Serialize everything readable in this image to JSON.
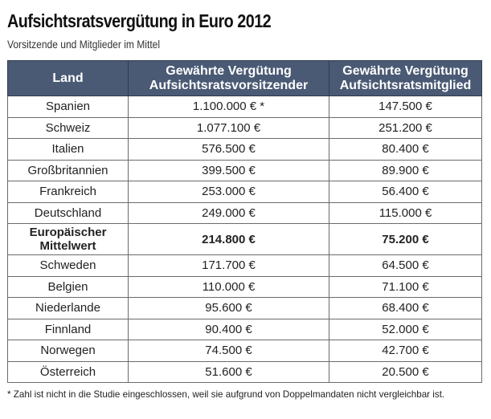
{
  "chart_data": {
    "type": "table",
    "title": "Aufsichtsratsvergütung in Euro 2012",
    "subtitle": "Vorsitzende und Mitglieder im Mittel",
    "columns": [
      "Land",
      "Gewährte Vergütung Aufsichtsratsvorsitzender",
      "Gewährte Vergütung Aufsichtsratsmitglied"
    ],
    "rows": [
      {
        "land": "Spanien",
        "vorsitzender": "1.100.000 € *",
        "mitglied": "147.500 €"
      },
      {
        "land": "Schweiz",
        "vorsitzender": "1.077.100 €",
        "mitglied": "251.200 €"
      },
      {
        "land": "Italien",
        "vorsitzender": "576.500 €",
        "mitglied": "80.400 €"
      },
      {
        "land": "Großbritannien",
        "vorsitzender": "399.500 €",
        "mitglied": "89.900 €"
      },
      {
        "land": "Frankreich",
        "vorsitzender": "253.000 €",
        "mitglied": "56.400 €"
      },
      {
        "land": "Deutschland",
        "vorsitzender": "249.000 €",
        "mitglied": "115.000 €"
      },
      {
        "land": "Europäischer Mittelwert",
        "vorsitzender": "214.800 €",
        "mitglied": "75.200 €",
        "bold": true
      },
      {
        "land": "Schweden",
        "vorsitzender": "171.700 €",
        "mitglied": "64.500 €"
      },
      {
        "land": "Belgien",
        "vorsitzender": "110.000 €",
        "mitglied": "71.100 €"
      },
      {
        "land": "Niederlande",
        "vorsitzender": "95.600 €",
        "mitglied": "68.400 €"
      },
      {
        "land": "Finnland",
        "vorsitzender": "90.400 €",
        "mitglied": "52.000 €"
      },
      {
        "land": "Norwegen",
        "vorsitzender": "74.500 €",
        "mitglied": "42.700 €"
      },
      {
        "land": "Österreich",
        "vorsitzender": "51.600 €",
        "mitglied": "20.500 €"
      }
    ],
    "footnote": "* Zahl ist nicht in die Studie eingeschlossen, weil sie aufgrund von Doppelmandaten nicht vergleichbar ist."
  },
  "colors": {
    "header_bg": "#4a5a74",
    "header_text": "#ffffff",
    "border": "#6b6b6b"
  }
}
